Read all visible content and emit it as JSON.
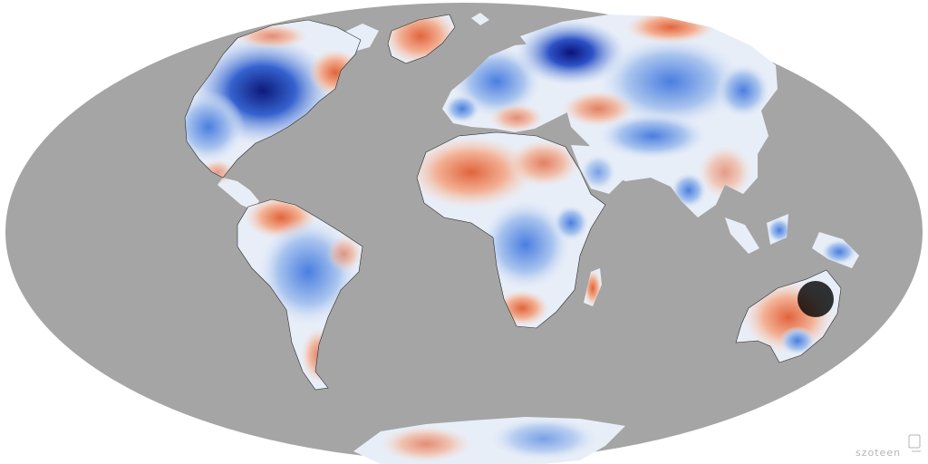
{
  "map": {
    "projection": "mollweide",
    "ocean_color": "#a5a5a5",
    "background_color": "#ffffff",
    "palette": {
      "deep_cold": "#1b2a8f",
      "cold": "#3d6fd6",
      "cool": "#b9cdee",
      "neutral": "#f4f1ee",
      "warm": "#f2b69a",
      "hot": "#d9532f"
    },
    "watermark": {
      "text": "szoteen",
      "icon": "document-icon"
    }
  }
}
